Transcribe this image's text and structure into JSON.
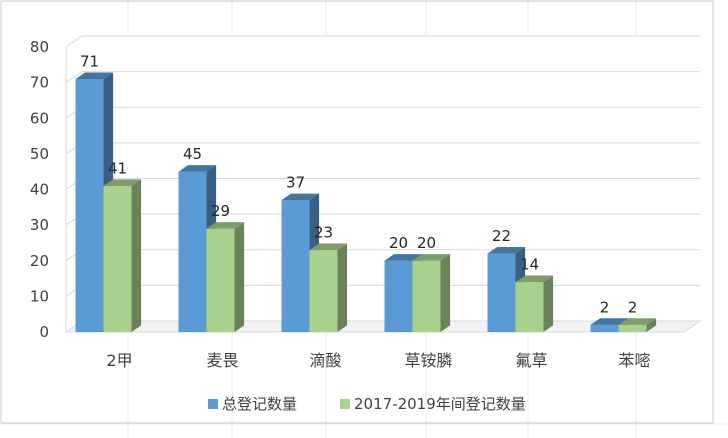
{
  "chart_data": {
    "type": "bar",
    "categories": [
      "2甲",
      "麦畏",
      "滴酸",
      "草铵膦",
      "氟草",
      "苯嘧"
    ],
    "series": [
      {
        "name": "总登记数量",
        "values": [
          71,
          45,
          37,
          20,
          22,
          2
        ],
        "color": "#5B9BD5"
      },
      {
        "name": "2017-2019年间登记数量",
        "values": [
          41,
          29,
          23,
          20,
          14,
          2
        ],
        "color": "#A9D18E"
      }
    ],
    "ylim": [
      0,
      80
    ],
    "yticks": [
      0,
      10,
      20,
      30,
      40,
      50,
      60,
      70,
      80
    ],
    "grid": true,
    "legend": "bottom",
    "style": "3d-clustered-column"
  }
}
